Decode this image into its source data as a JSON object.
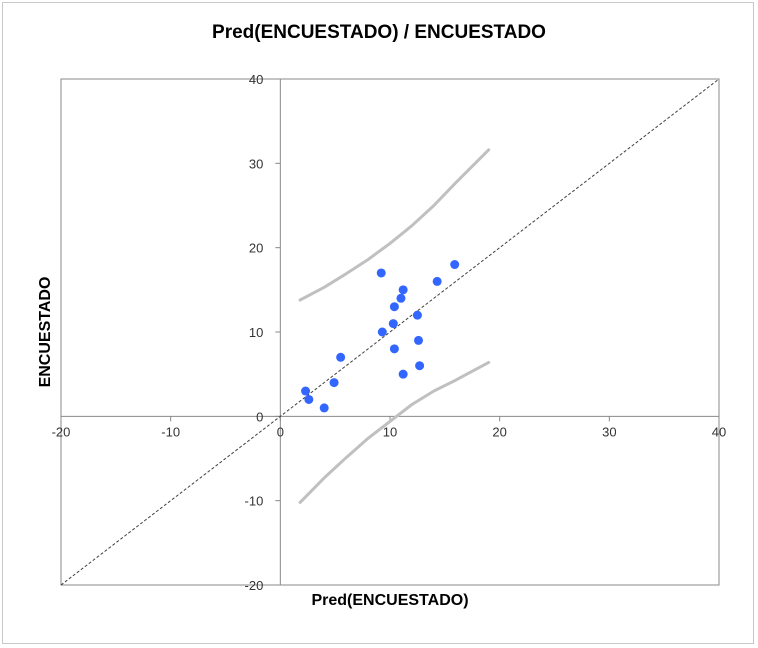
{
  "chart_data": {
    "type": "scatter",
    "title": "Pred(ENCUESTADO) / ENCUESTADO",
    "xlabel": "Pred(ENCUESTADO)",
    "ylabel": "ENCUESTADO",
    "xlim": [
      -20,
      40
    ],
    "ylim": [
      -20,
      40
    ],
    "xticks": [
      -20,
      -10,
      0,
      10,
      20,
      30,
      40
    ],
    "yticks": [
      -20,
      -10,
      0,
      10,
      20,
      30,
      40
    ],
    "grid": false,
    "points": [
      {
        "x": 2.3,
        "y": 3
      },
      {
        "x": 2.6,
        "y": 2
      },
      {
        "x": 4.0,
        "y": 1
      },
      {
        "x": 4.9,
        "y": 4
      },
      {
        "x": 5.5,
        "y": 7
      },
      {
        "x": 9.2,
        "y": 17
      },
      {
        "x": 9.3,
        "y": 10
      },
      {
        "x": 10.3,
        "y": 11
      },
      {
        "x": 10.4,
        "y": 13
      },
      {
        "x": 10.4,
        "y": 8
      },
      {
        "x": 11.0,
        "y": 14
      },
      {
        "x": 11.2,
        "y": 15
      },
      {
        "x": 11.2,
        "y": 5
      },
      {
        "x": 12.5,
        "y": 12
      },
      {
        "x": 12.6,
        "y": 9
      },
      {
        "x": 12.7,
        "y": 6
      },
      {
        "x": 14.3,
        "y": 16
      },
      {
        "x": 15.9,
        "y": 18
      }
    ],
    "reference_line": {
      "x": [
        -20,
        40
      ],
      "y": [
        -20,
        40
      ]
    },
    "upper_band": {
      "x": [
        1.8,
        4,
        6,
        8,
        10,
        12,
        14,
        16,
        19
      ],
      "y": [
        13.8,
        15.3,
        16.9,
        18.6,
        20.5,
        22.6,
        25.0,
        27.7,
        31.6
      ]
    },
    "lower_band": {
      "x": [
        1.8,
        4,
        6,
        8,
        10,
        12,
        14,
        16,
        19
      ],
      "y": [
        -10.2,
        -7.3,
        -4.9,
        -2.6,
        -0.6,
        1.4,
        3.0,
        4.3,
        6.4
      ]
    },
    "colors": {
      "points": "#3366ff",
      "band": "#c0c0c0",
      "reference": "#404040",
      "axes": "#888888"
    }
  }
}
